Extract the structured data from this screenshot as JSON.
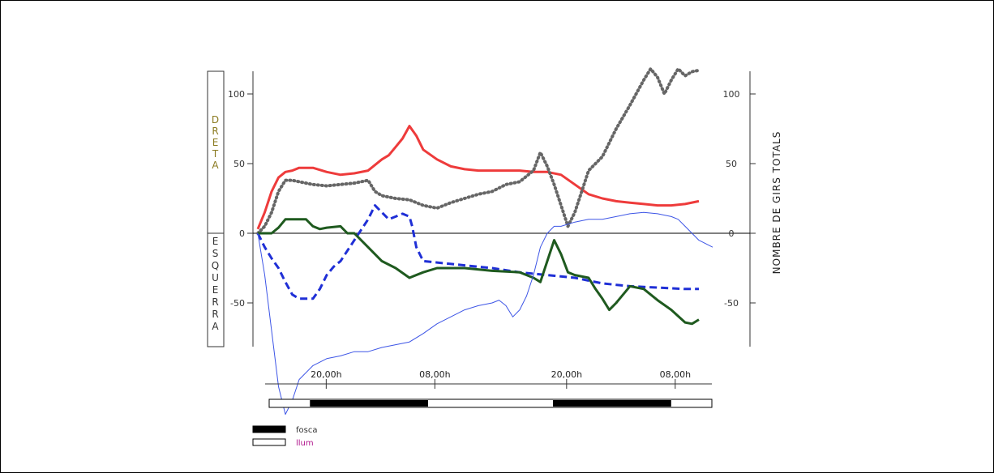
{
  "chart_data": {
    "type": "line",
    "left_label_top": "DRETA",
    "left_label_bottom": "ESQUERRA",
    "right_label": "NOMBRE DE GIRS TOTALS",
    "left_ticks": [
      "100",
      "50",
      "0",
      "-50"
    ],
    "right_ticks": [
      "100",
      "50",
      "0",
      "-50"
    ],
    "ylim": [
      -80,
      120
    ],
    "xlim": [
      0,
      330
    ],
    "time_ticks": [
      {
        "x": 42,
        "label": "20,00h"
      },
      {
        "x": 122,
        "label": "08,00h"
      },
      {
        "x": 219,
        "label": "20,00h"
      },
      {
        "x": 299,
        "label": "08,00h"
      }
    ],
    "light_cycle": [
      {
        "start": 0,
        "end": 30,
        "state": "light"
      },
      {
        "start": 30,
        "end": 117,
        "state": "dark"
      },
      {
        "start": 117,
        "end": 209,
        "state": "light"
      },
      {
        "start": 209,
        "end": 296,
        "state": "dark"
      },
      {
        "start": 296,
        "end": 326,
        "state": "light"
      }
    ],
    "series": [
      {
        "color": "#ee3b3b",
        "style": "solid",
        "x": [
          0,
          5,
          10,
          15,
          20,
          25,
          30,
          40,
          50,
          60,
          70,
          80,
          90,
          95,
          100,
          105,
          110,
          115,
          120,
          130,
          140,
          150,
          160,
          170,
          180,
          190,
          200,
          210,
          220,
          230,
          240,
          250,
          260,
          270,
          280,
          290,
          300,
          310,
          320
        ],
        "y": [
          3,
          15,
          30,
          40,
          44,
          45,
          47,
          47,
          44,
          42,
          43,
          45,
          53,
          56,
          62,
          68,
          77,
          70,
          60,
          53,
          48,
          46,
          45,
          45,
          45,
          45,
          44,
          44,
          42,
          35,
          28,
          25,
          23,
          22,
          21,
          20,
          20,
          21,
          23
        ]
      },
      {
        "color": "#666666",
        "style": "dotted",
        "x": [
          0,
          5,
          10,
          15,
          20,
          25,
          30,
          40,
          50,
          60,
          70,
          80,
          85,
          90,
          100,
          110,
          120,
          130,
          140,
          150,
          160,
          170,
          180,
          190,
          200,
          205,
          210,
          215,
          220,
          225,
          230,
          235,
          240,
          250,
          260,
          270,
          280,
          285,
          290,
          295,
          300,
          305,
          310,
          315,
          320
        ],
        "y": [
          0,
          5,
          15,
          30,
          38,
          38,
          37,
          35,
          34,
          35,
          36,
          38,
          30,
          27,
          25,
          24,
          20,
          18,
          22,
          25,
          28,
          30,
          35,
          37,
          45,
          58,
          48,
          35,
          20,
          5,
          15,
          30,
          45,
          55,
          75,
          92,
          110,
          118,
          112,
          100,
          110,
          118,
          113,
          116,
          117
        ]
      },
      {
        "color": "#1f2fd6",
        "style": "dashed",
        "x": [
          0,
          5,
          10,
          15,
          20,
          25,
          30,
          35,
          40,
          45,
          50,
          55,
          60,
          70,
          80,
          85,
          90,
          95,
          100,
          105,
          110,
          112,
          115,
          120,
          130,
          150,
          170,
          190,
          210,
          230,
          250,
          270,
          290,
          310,
          320
        ],
        "y": [
          0,
          -10,
          -18,
          -25,
          -35,
          -44,
          -47,
          -47,
          -47,
          -40,
          -30,
          -24,
          -20,
          -5,
          10,
          20,
          15,
          10,
          12,
          14,
          12,
          5,
          -10,
          -20,
          -21,
          -23,
          -25,
          -28,
          -30,
          -32,
          -36,
          -38,
          -39,
          -40,
          -40
        ]
      },
      {
        "color": "#1f5a1f",
        "style": "solid",
        "x": [
          0,
          10,
          15,
          20,
          25,
          35,
          40,
          45,
          50,
          60,
          65,
          70,
          80,
          90,
          100,
          110,
          120,
          130,
          150,
          170,
          190,
          200,
          205,
          210,
          215,
          220,
          225,
          230,
          240,
          245,
          250,
          255,
          260,
          270,
          280,
          290,
          300,
          310,
          315,
          320
        ],
        "y": [
          0,
          0,
          4,
          10,
          10,
          10,
          5,
          3,
          4,
          5,
          0,
          0,
          -10,
          -20,
          -25,
          -32,
          -28,
          -25,
          -25,
          -27,
          -28,
          -32,
          -35,
          -20,
          -5,
          -15,
          -28,
          -30,
          -32,
          -40,
          -47,
          -55,
          -50,
          -38,
          -40,
          -48,
          -55,
          -64,
          -65,
          -62
        ]
      },
      {
        "color": "#3d55e6",
        "style": "thin",
        "x": [
          0,
          5,
          10,
          15,
          20,
          25,
          30,
          40,
          50,
          60,
          70,
          80,
          90,
          100,
          110,
          120,
          130,
          140,
          150,
          160,
          170,
          175,
          180,
          185,
          190,
          195,
          200,
          205,
          210,
          215,
          220,
          230,
          240,
          250,
          260,
          270,
          280,
          290,
          300,
          305,
          310,
          320,
          330
        ],
        "y": [
          0,
          -30,
          -70,
          -110,
          -130,
          -120,
          -105,
          -95,
          -90,
          -88,
          -85,
          -85,
          -82,
          -80,
          -78,
          -72,
          -65,
          -60,
          -55,
          -52,
          -50,
          -48,
          -52,
          -60,
          -55,
          -45,
          -30,
          -10,
          0,
          5,
          5,
          8,
          10,
          10,
          12,
          14,
          15,
          14,
          12,
          10,
          5,
          -5,
          -10
        ]
      }
    ]
  },
  "legend": [
    {
      "label": "fosca",
      "swatch": "#000000",
      "color": "#333333"
    },
    {
      "label": "llum",
      "swatch": "#ffffff",
      "color": "#b0148c"
    }
  ]
}
